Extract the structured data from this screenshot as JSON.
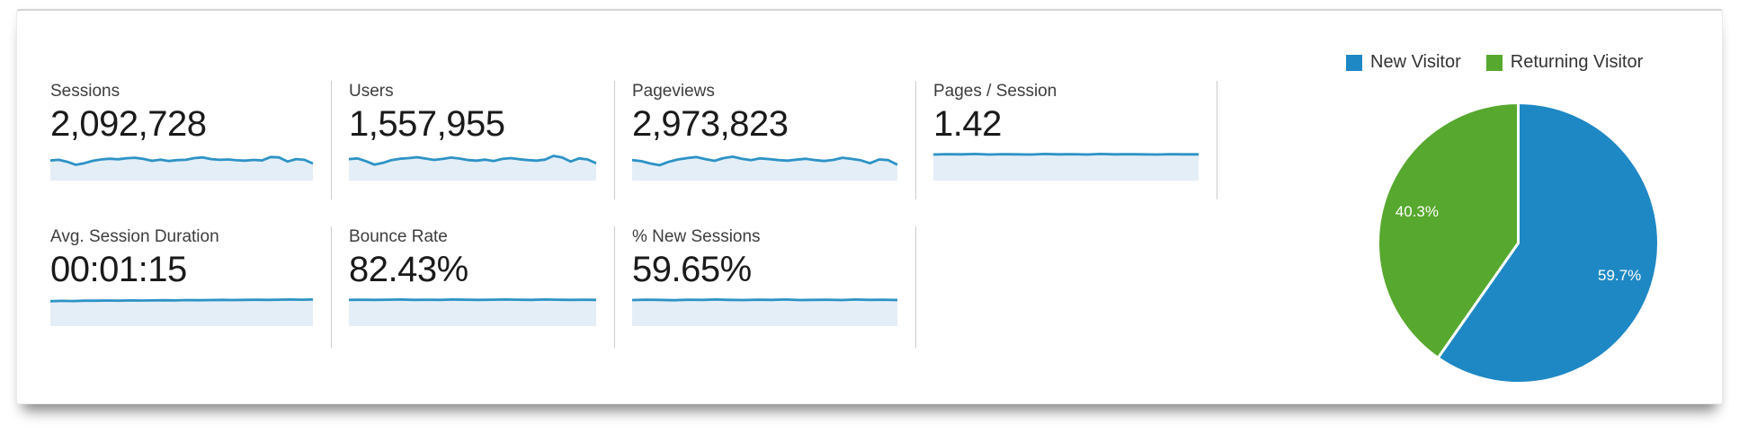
{
  "colors": {
    "spark_line": "#2d93c6",
    "spark_fill": "#e4eef7",
    "divider": "#cccccc",
    "new_visitor_blue": "#1e88c5",
    "returning_visitor_green": "#57a82e",
    "label_text": "#3d3d3d",
    "value_text": "#1a1a1a"
  },
  "metrics": {
    "row1": [
      {
        "label": "Sessions",
        "value": "2,092,728",
        "spark": [
          0.52,
          0.56,
          0.44,
          0.27,
          0.36,
          0.5,
          0.58,
          0.62,
          0.59,
          0.65,
          0.68,
          0.61,
          0.5,
          0.57,
          0.49,
          0.54,
          0.56,
          0.66,
          0.7,
          0.6,
          0.56,
          0.58,
          0.53,
          0.51,
          0.55,
          0.52,
          0.72,
          0.7,
          0.46,
          0.6,
          0.56,
          0.34
        ]
      },
      {
        "label": "Users",
        "value": "1,557,955",
        "spark": [
          0.6,
          0.64,
          0.48,
          0.28,
          0.38,
          0.54,
          0.62,
          0.66,
          0.71,
          0.63,
          0.55,
          0.61,
          0.69,
          0.63,
          0.54,
          0.51,
          0.57,
          0.49,
          0.61,
          0.66,
          0.59,
          0.54,
          0.51,
          0.57,
          0.79,
          0.7,
          0.46,
          0.64,
          0.58,
          0.36
        ]
      },
      {
        "label": "Pageviews",
        "value": "2,973,823",
        "spark": [
          0.54,
          0.48,
          0.34,
          0.24,
          0.44,
          0.58,
          0.66,
          0.72,
          0.6,
          0.5,
          0.66,
          0.74,
          0.62,
          0.54,
          0.64,
          0.6,
          0.54,
          0.51,
          0.57,
          0.62,
          0.54,
          0.49,
          0.55,
          0.68,
          0.61,
          0.53,
          0.36,
          0.58,
          0.54,
          0.27
        ]
      },
      {
        "label": "Pages / Session",
        "value": "1.42",
        "spark": [
          0.87,
          0.89,
          0.88,
          0.9,
          0.87,
          0.89,
          0.88,
          0.87,
          0.9,
          0.88,
          0.89,
          0.87,
          0.9,
          0.88,
          0.89,
          0.88,
          0.87,
          0.89,
          0.88,
          0.88
        ]
      }
    ],
    "row2": [
      {
        "label": "Avg. Session Duration",
        "value": "00:01:15",
        "spark": [
          0.8,
          0.82,
          0.81,
          0.83,
          0.83,
          0.84,
          0.83,
          0.85,
          0.84,
          0.85,
          0.86,
          0.85,
          0.87,
          0.86,
          0.87,
          0.88,
          0.87,
          0.88,
          0.89,
          0.88,
          0.89,
          0.9,
          0.89,
          0.9
        ]
      },
      {
        "label": "Bounce Rate",
        "value": "82.43%",
        "spark": [
          0.88,
          0.89,
          0.88,
          0.89,
          0.9,
          0.88,
          0.89,
          0.88,
          0.9,
          0.89,
          0.88,
          0.89,
          0.9,
          0.89,
          0.88,
          0.9,
          0.89,
          0.88,
          0.89,
          0.88
        ]
      },
      {
        "label": "% New Sessions",
        "value": "59.65%",
        "spark": [
          0.87,
          0.89,
          0.88,
          0.86,
          0.89,
          0.88,
          0.9,
          0.88,
          0.87,
          0.89,
          0.88,
          0.9,
          0.87,
          0.88,
          0.89,
          0.87,
          0.9,
          0.88,
          0.89,
          0.87
        ]
      }
    ]
  },
  "pie": {
    "legend": [
      {
        "label": "New Visitor",
        "color": "#1e88c5"
      },
      {
        "label": "Returning Visitor",
        "color": "#57a82e"
      }
    ],
    "slices": [
      {
        "id": "new-visitor",
        "label": "New Visitor",
        "value": 59.7,
        "display": "59.7%",
        "color": "#1e88c5"
      },
      {
        "id": "returning-visitor",
        "label": "Returning Visitor",
        "value": 40.3,
        "display": "40.3%",
        "color": "#57a82e"
      }
    ]
  },
  "chart_data": {
    "type": "pie",
    "labels": [
      "New Visitor",
      "Returning Visitor"
    ],
    "values": [
      59.7,
      40.3
    ],
    "unit": "%",
    "colors": [
      "#1e88c5",
      "#57a82e"
    ],
    "legend_position": "top-right",
    "start_angle_deg_from_12_oclock": 0,
    "direction": "clockwise"
  }
}
